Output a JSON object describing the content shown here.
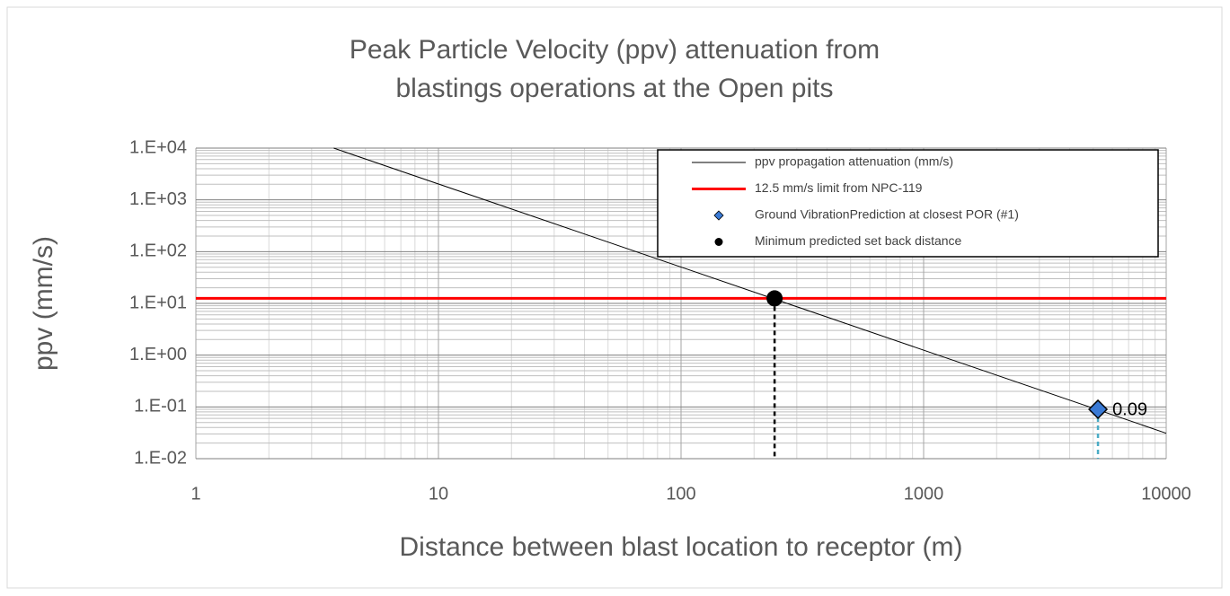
{
  "chart_data": {
    "type": "scatter",
    "title": [
      "Peak Particle Velocity (ppv) attenuation from",
      "blastings operations at the Open pits"
    ],
    "xlabel": "Distance between blast location to receptor (m)",
    "ylabel": "ppv (mm/s)",
    "xscale": "log",
    "yscale": "log",
    "grid": true,
    "legend": "upper right",
    "xlim": [
      1,
      10000
    ],
    "xticks": [
      1,
      10,
      100,
      1000,
      10000
    ],
    "ylim": [
      0.01,
      10000
    ],
    "yticks": [
      {
        "value": 0.01,
        "label": "1.E-02"
      },
      {
        "value": 0.1,
        "label": "1.E-01"
      },
      {
        "value": 1,
        "label": "1.E+00"
      },
      {
        "value": 10,
        "label": "1.E+01"
      },
      {
        "value": 100,
        "label": "1.E+02"
      },
      {
        "value": 1000,
        "label": "1.E+03"
      },
      {
        "value": 10000,
        "label": "1.E+04"
      }
    ],
    "series": [
      {
        "name": "ppv propagation attenuation (mm/s)",
        "style": "line",
        "color": "#000000",
        "x": [
          3.7,
          10000
        ],
        "values": [
          10000,
          0.031
        ]
      },
      {
        "name": "12.5 mm/s limit from NPC-119",
        "style": "line",
        "color": "#ff0000",
        "x": [
          1,
          10000
        ],
        "values": [
          12.5,
          12.5
        ]
      },
      {
        "name": "Ground VibrationPrediction at closest POR (#1)",
        "style": "diamond",
        "color": "#3a7ad5",
        "drop_color": "#4bacc6",
        "x": [
          5233
        ],
        "values": [
          0.09
        ]
      },
      {
        "name": "Minimum predicted set back distance",
        "style": "circle",
        "color": "#000000",
        "drop_color": "#000000",
        "x": [
          243
        ],
        "values": [
          12.5
        ]
      }
    ]
  }
}
